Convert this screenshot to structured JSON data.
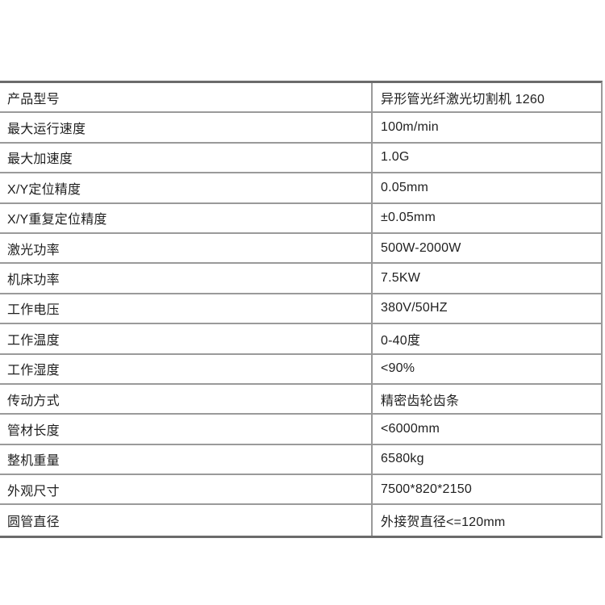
{
  "colors": {
    "background": "#ffffff",
    "text": "#1f1f1f",
    "border_outer": "#6b6b6b",
    "border_inner": "#9a9a9a"
  },
  "table": {
    "rows": [
      {
        "label": "产品型号",
        "value": "异形管光纤激光切割机 1260"
      },
      {
        "label": "最大运行速度",
        "value": "100m/min"
      },
      {
        "label": "最大加速度",
        "value": "1.0G"
      },
      {
        "label": "X/Y定位精度",
        "value": "0.05mm"
      },
      {
        "label": "X/Y重复定位精度",
        "value": "±0.05mm"
      },
      {
        "label": "激光功率",
        "value": "500W-2000W"
      },
      {
        "label": "机床功率",
        "value": "7.5KW"
      },
      {
        "label": "工作电压",
        "value": "380V/50HZ"
      },
      {
        "label": "工作温度",
        "value": "0-40度"
      },
      {
        "label": "工作湿度",
        "value": "<90%"
      },
      {
        "label": "传动方式",
        "value": "精密齿轮齿条"
      },
      {
        "label": "管材长度",
        "value": "<6000mm"
      },
      {
        "label": "整机重量",
        "value": "6580kg"
      },
      {
        "label": "外观尺寸",
        "value": "7500*820*2150"
      },
      {
        "label": "圆管直径",
        "value": "外接贺直径<=120mm"
      }
    ]
  }
}
